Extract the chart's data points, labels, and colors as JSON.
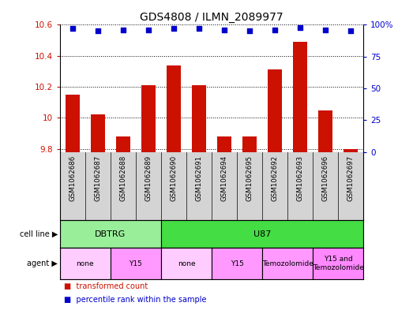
{
  "title": "GDS4808 / ILMN_2089977",
  "samples": [
    "GSM1062686",
    "GSM1062687",
    "GSM1062688",
    "GSM1062689",
    "GSM1062690",
    "GSM1062691",
    "GSM1062694",
    "GSM1062695",
    "GSM1062692",
    "GSM1062693",
    "GSM1062696",
    "GSM1062697"
  ],
  "transformed_counts": [
    10.15,
    10.02,
    9.88,
    10.21,
    10.34,
    10.21,
    9.88,
    9.88,
    10.31,
    10.49,
    10.05,
    9.8
  ],
  "percentile_ranks": [
    97,
    95,
    96,
    96,
    97,
    97,
    96,
    95,
    96,
    98,
    96,
    95
  ],
  "ylim_left": [
    9.78,
    10.6
  ],
  "ylim_right": [
    0,
    100
  ],
  "yticks_left": [
    9.8,
    10.0,
    10.2,
    10.4,
    10.6
  ],
  "yticks_right": [
    0,
    25,
    50,
    75,
    100
  ],
  "bar_color": "#cc1100",
  "dot_color": "#0000cc",
  "cell_line_groups": [
    {
      "label": "DBTRG",
      "start": 0,
      "end": 4,
      "color": "#99ee99"
    },
    {
      "label": "U87",
      "start": 4,
      "end": 12,
      "color": "#44dd44"
    }
  ],
  "agent_groups": [
    {
      "label": "none",
      "start": 0,
      "end": 2,
      "color": "#ffccff"
    },
    {
      "label": "Y15",
      "start": 2,
      "end": 4,
      "color": "#ff99ff"
    },
    {
      "label": "none",
      "start": 4,
      "end": 6,
      "color": "#ffccff"
    },
    {
      "label": "Y15",
      "start": 6,
      "end": 8,
      "color": "#ff99ff"
    },
    {
      "label": "Temozolomide",
      "start": 8,
      "end": 10,
      "color": "#ff99ff"
    },
    {
      "label": "Y15 and\nTemozolomide",
      "start": 10,
      "end": 12,
      "color": "#ff88ff"
    }
  ],
  "left_axis_color": "#cc1100",
  "right_axis_color": "#0000cc",
  "label_bg_color": "#d4d4d4",
  "background_color": "#ffffff",
  "grid_color": "#000000"
}
